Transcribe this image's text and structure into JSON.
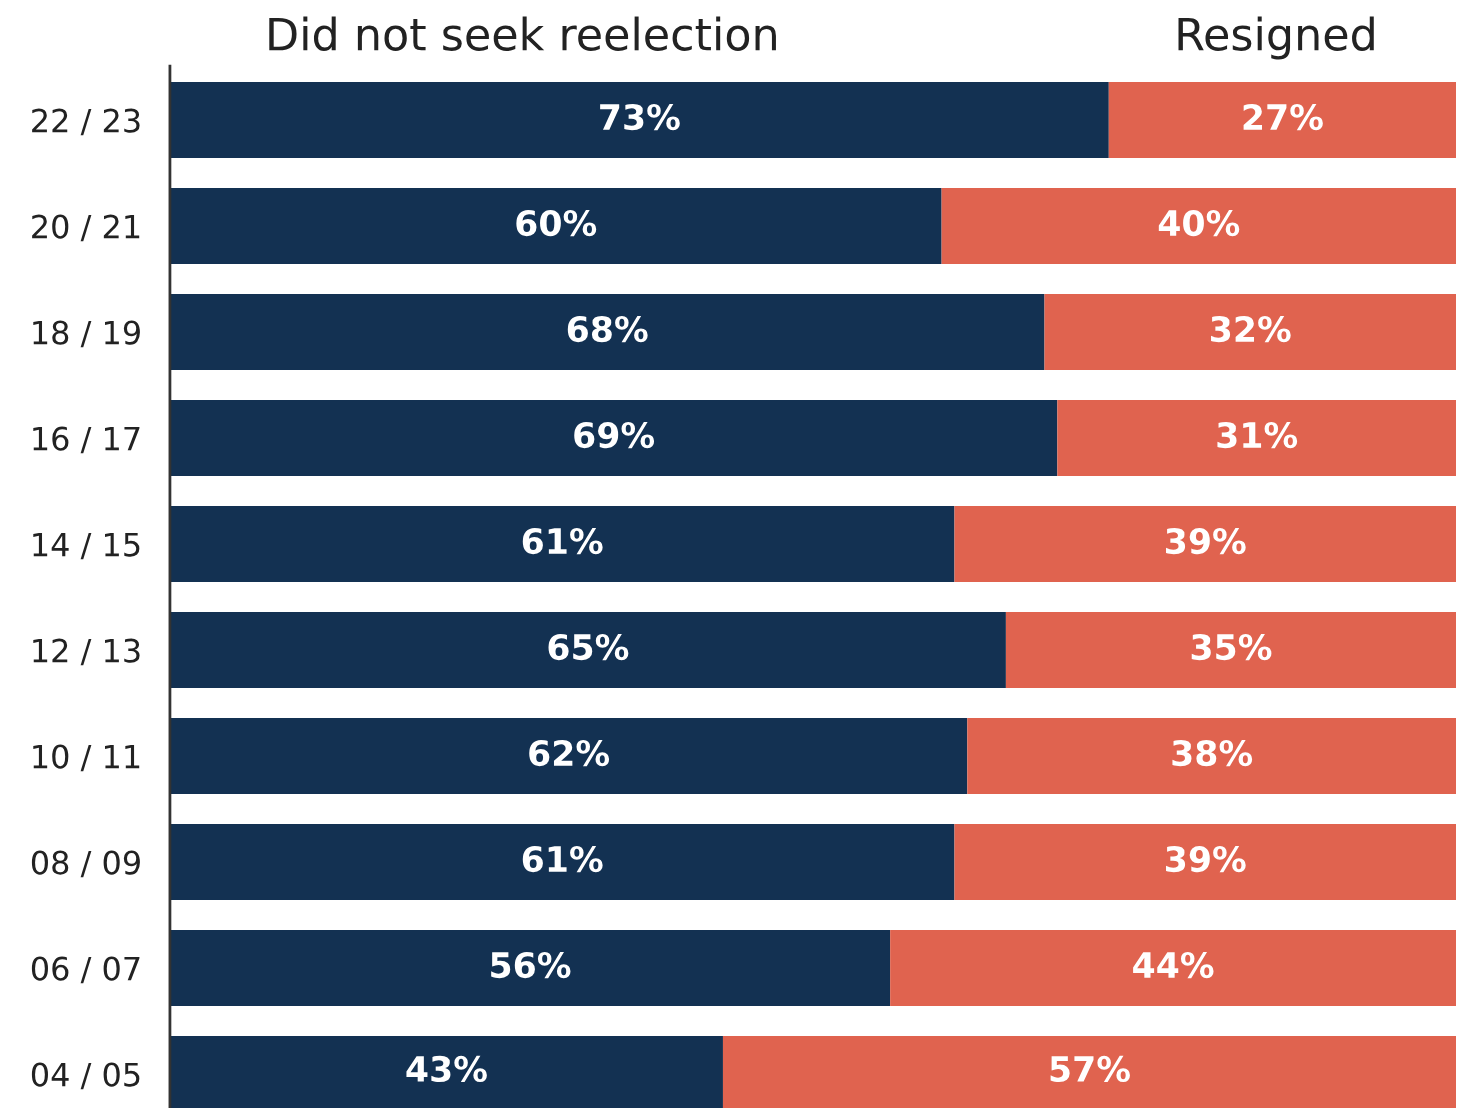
{
  "chart_data": {
    "type": "bar",
    "orientation": "horizontal",
    "stacked": true,
    "xlim": [
      0,
      100
    ],
    "tick_labels": "y",
    "categories": [
      "22 / 23",
      "20 / 21",
      "18 / 19",
      "16 / 17",
      "14 / 15",
      "12 / 13",
      "10 / 11",
      "08 / 09",
      "06 / 07",
      "04 / 05"
    ],
    "series": [
      {
        "name": "Did not seek reelection",
        "color": "#133152",
        "values": [
          73,
          60,
          68,
          69,
          61,
          65,
          62,
          61,
          56,
          43
        ],
        "value_labels": [
          "73%",
          "60%",
          "68%",
          "69%",
          "61%",
          "65%",
          "62%",
          "61%",
          "56%",
          "43%"
        ]
      },
      {
        "name": "Resigned",
        "color": "#e0634f",
        "values": [
          27,
          40,
          32,
          31,
          39,
          35,
          38,
          39,
          44,
          57
        ],
        "value_labels": [
          "27%",
          "40%",
          "32%",
          "31%",
          "39%",
          "35%",
          "38%",
          "39%",
          "44%",
          "57%"
        ]
      }
    ]
  }
}
